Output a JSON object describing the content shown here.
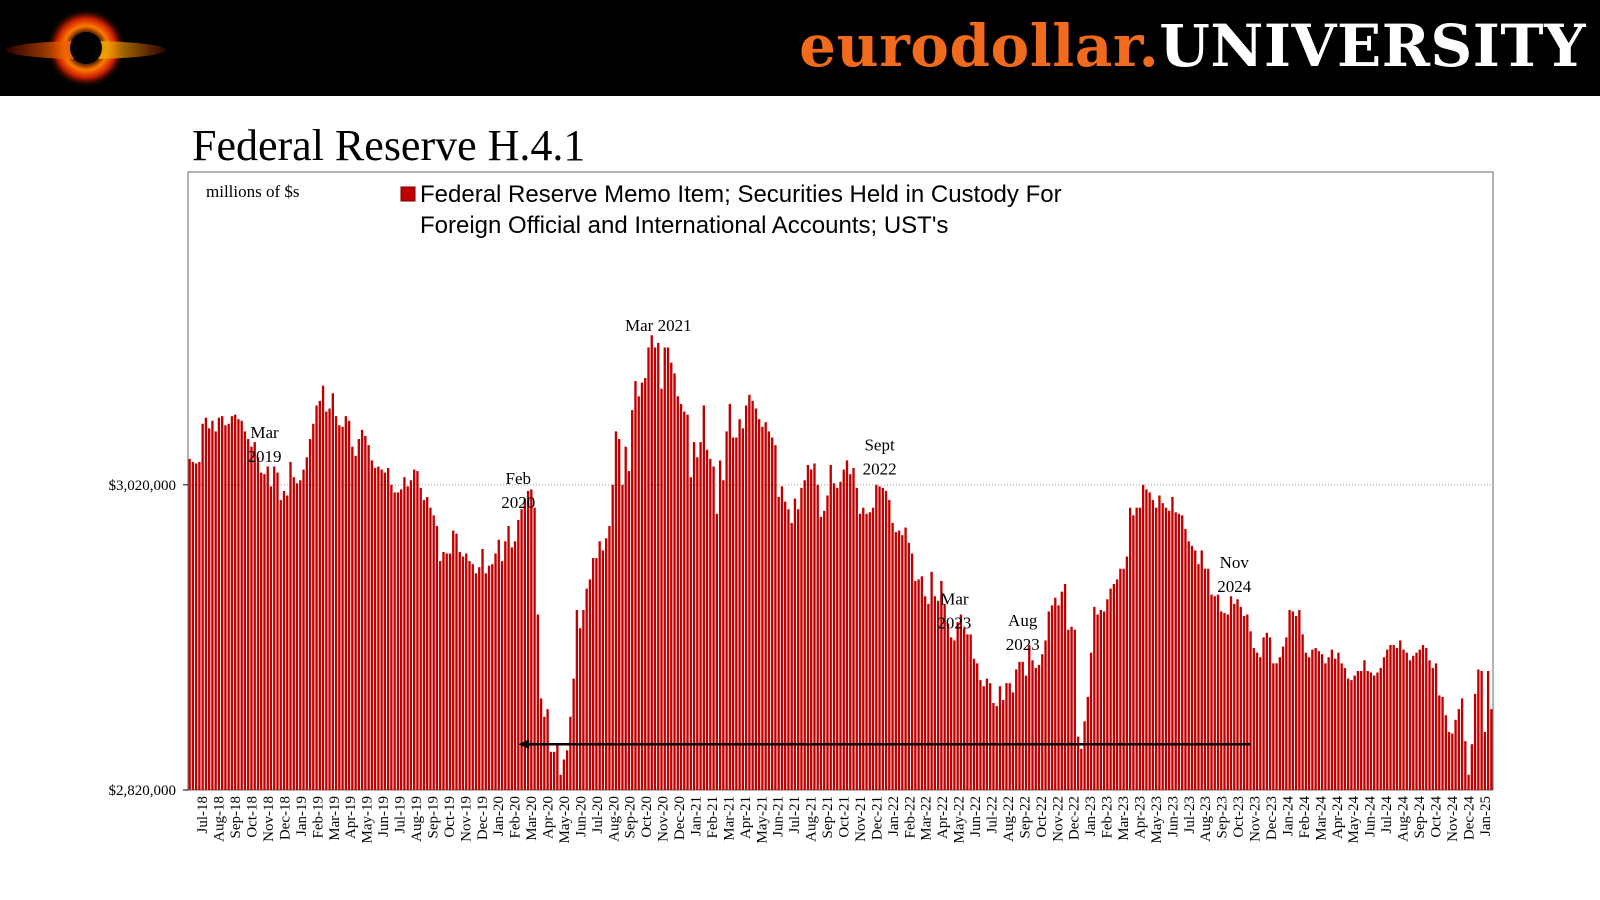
{
  "brand": {
    "part1": "eurodollar.",
    "part2": "UNIVERSITY",
    "color_orange": "#f26b1d"
  },
  "page_title": "Federal Reserve H.4.1",
  "chart_data": {
    "type": "bar",
    "units_label": "millions of $s",
    "legend": "Federal Reserve Memo Item; Securities Held in Custody For Foreign Official and International Accounts; UST's",
    "bar_color": "#c00000",
    "ylim": [
      2820000,
      3225000
    ],
    "yticks": [
      {
        "value": 3020000,
        "label": "$3,020,000"
      },
      {
        "value": 2820000,
        "label": "$2,820,000"
      }
    ],
    "x_tick_labels": [
      "Jul-18",
      "Aug-18",
      "Sep-18",
      "Oct-18",
      "Nov-18",
      "Dec-18",
      "Jan-19",
      "Feb-19",
      "Mar-19",
      "Apr-19",
      "May-19",
      "Jun-19",
      "Jul-19",
      "Aug-19",
      "Sep-19",
      "Oct-19",
      "Nov-19",
      "Dec-19",
      "Jan-20",
      "Feb-20",
      "Mar-20",
      "Apr-20",
      "May-20",
      "Jun-20",
      "Jul-20",
      "Aug-20",
      "Sep-20",
      "Oct-20",
      "Nov-20",
      "Dec-20",
      "Jan-21",
      "Feb-21",
      "Mar-21",
      "Apr-21",
      "May-21",
      "Jun-21",
      "Jul-21",
      "Aug-21",
      "Sep-21",
      "Oct-21",
      "Nov-21",
      "Dec-21",
      "Jan-22",
      "Feb-22",
      "Mar-22",
      "Apr-22",
      "May-22",
      "Jun-22",
      "Jul-22",
      "Aug-22",
      "Sep-22",
      "Oct-22",
      "Nov-22",
      "Dec-22",
      "Jan-23",
      "Feb-23",
      "Mar-23",
      "Apr-23",
      "May-23",
      "Jun-23",
      "Jul-23",
      "Aug-23",
      "Sep-23",
      "Oct-23",
      "Nov-23",
      "Dec-23",
      "Jan-24",
      "Feb-24",
      "Mar-24",
      "Apr-24",
      "May-24",
      "Jun-24",
      "Jul-24",
      "Aug-24",
      "Sep-24",
      "Oct-24",
      "Nov-24",
      "Dec-24",
      "Jan-25"
    ],
    "values": [
      3037000,
      3035000,
      3034000,
      3035000,
      3060000,
      3064000,
      3057000,
      3062000,
      3055000,
      3064000,
      3065000,
      3059000,
      3060000,
      3065000,
      3066000,
      3063000,
      3062000,
      3055000,
      3050000,
      3045000,
      3048000,
      3038000,
      3028000,
      3027000,
      3032000,
      3019000,
      3032000,
      3028000,
      3010000,
      3016000,
      3013000,
      3035000,
      3025000,
      3021000,
      3023000,
      3030000,
      3038000,
      3050000,
      3060000,
      3072000,
      3075000,
      3085000,
      3068000,
      3070000,
      3080000,
      3065000,
      3059000,
      3058000,
      3065000,
      3062000,
      3045000,
      3039000,
      3050000,
      3056000,
      3052000,
      3046000,
      3036000,
      3031000,
      3032000,
      3030000,
      3028000,
      3031000,
      3020000,
      3015000,
      3015000,
      3017000,
      3025000,
      3019000,
      3023000,
      3030000,
      3029000,
      3018000,
      3010000,
      3012000,
      3005000,
      3000000,
      2993000,
      2970000,
      2976000,
      2975000,
      2975000,
      2990000,
      2988000,
      2976000,
      2973000,
      2975000,
      2970000,
      2968000,
      2962000,
      2966000,
      2978000,
      2962000,
      2967000,
      2968000,
      2975000,
      2984000,
      2970000,
      2983000,
      2993000,
      2979000,
      2983000,
      2997000,
      3004000,
      3011000,
      3016000,
      3017000,
      3005000,
      2935000,
      2880000,
      2868000,
      2873000,
      2845000,
      2845000,
      2850000,
      2830000,
      2840000,
      2846000,
      2868000,
      2893000,
      2938000,
      2926000,
      2938000,
      2952000,
      2958000,
      2972000,
      2972000,
      2983000,
      2977000,
      2985000,
      2993000,
      3020000,
      3055000,
      3050000,
      3020000,
      3045000,
      3029000,
      3069000,
      3088000,
      3078000,
      3087000,
      3090000,
      3110000,
      3118000,
      3110000,
      3113000,
      3083000,
      3110000,
      3110000,
      3100000,
      3093000,
      3078000,
      3073000,
      3068000,
      3066000,
      3025000,
      3048000,
      3038000,
      3048000,
      3072000,
      3043000,
      3037000,
      3032000,
      3001000,
      3036000,
      3023000,
      3055000,
      3073000,
      3051000,
      3051000,
      3063000,
      3057000,
      3072000,
      3079000,
      3075000,
      3070000,
      3063000,
      3058000,
      3061000,
      3055000,
      3051000,
      3046000,
      3012000,
      3019000,
      3009000,
      3004000,
      2995000,
      3011000,
      3004000,
      3018000,
      3023000,
      3033000,
      3030000,
      3034000,
      3020000,
      2999000,
      3003000,
      3013000,
      3033000,
      3021000,
      3018000,
      3022000,
      3030000,
      3036000,
      3027000,
      3031000,
      3018000,
      3001000,
      3005000,
      3001000,
      3002000,
      3005000,
      3020000,
      3019000,
      3018000,
      3016000,
      3010000,
      2995000,
      2989000,
      2990000,
      2987000,
      2992000,
      2982000,
      2975000,
      2957000,
      2958000,
      2960000,
      2947000,
      2942000,
      2963000,
      2947000,
      2944000,
      2957000,
      2942000,
      2929000,
      2920000,
      2918000,
      2930000,
      2935000,
      2926000,
      2922000,
      2922000,
      2906000,
      2903000,
      2892000,
      2888000,
      2893000,
      2890000,
      2877000,
      2875000,
      2888000,
      2879000,
      2890000,
      2890000,
      2884000,
      2899000,
      2904000,
      2904000,
      2895000,
      2915000,
      2905000,
      2900000,
      2902000,
      2909000,
      2918000,
      2937000,
      2941000,
      2946000,
      2941000,
      2950000,
      2955000,
      2925000,
      2927000,
      2925000,
      2855000,
      2847000,
      2865000,
      2881000,
      2910000,
      2940000,
      2935000,
      2938000,
      2937000,
      2945000,
      2952000,
      2955000,
      2958000,
      2965000,
      2965000,
      2973000,
      3005000,
      3000000,
      3005000,
      3005000,
      3020000,
      3017000,
      3015000,
      3010000,
      3005000,
      3013000,
      3008000,
      3005000,
      3003000,
      3012000,
      3002000,
      3001000,
      3000000,
      2991000,
      2983000,
      2980000,
      2977000,
      2968000,
      2977000,
      2965000,
      2965000,
      2948000,
      2947000,
      2948000,
      2937000,
      2936000,
      2935000,
      2947000,
      2942000,
      2945000,
      2940000,
      2934000,
      2935000,
      2924000,
      2913000,
      2910000,
      2907000,
      2920000,
      2923000,
      2920000,
      2903000,
      2903000,
      2907000,
      2914000,
      2920000,
      2938000,
      2937000,
      2934000,
      2938000,
      2922000,
      2910000,
      2907000,
      2912000,
      2913000,
      2911000,
      2909000,
      2903000,
      2907000,
      2912000,
      2906000,
      2910000,
      2903000,
      2900000,
      2893000,
      2892000,
      2895000,
      2898000,
      2898000,
      2905000,
      2898000,
      2897000,
      2895000,
      2897000,
      2900000,
      2907000,
      2912000,
      2915000,
      2915000,
      2913000,
      2918000,
      2912000,
      2910000,
      2905000,
      2908000,
      2910000,
      2912000,
      2915000,
      2913000,
      2905000,
      2900000,
      2903000,
      2882000,
      2881000,
      2869000,
      2858000,
      2857000,
      2866000,
      2873000,
      2880000,
      2852000,
      2830000,
      2850000,
      2883000,
      2899000,
      2898000,
      2858000,
      2898000,
      2873000
    ],
    "annotations": [
      {
        "text": [
          "Mar",
          "2019"
        ],
        "bar_index": 23
      },
      {
        "text": [
          "Feb",
          "2020"
        ],
        "bar_index": 101
      },
      {
        "text": [
          "Mar 2021"
        ],
        "bar_index": 144
      },
      {
        "text": [
          "Sept",
          "2022"
        ],
        "bar_index": 212
      },
      {
        "text": [
          "Mar",
          "2023"
        ],
        "bar_index": 235
      },
      {
        "text": [
          "Aug",
          "2023"
        ],
        "bar_index": 256
      },
      {
        "text": [
          "Nov",
          "2024"
        ],
        "bar_index": 321
      }
    ],
    "reference_arrow": {
      "value": 2850000,
      "from_bar_index": 326,
      "to_bar_index": 101
    },
    "gridline_value": 3020000
  }
}
